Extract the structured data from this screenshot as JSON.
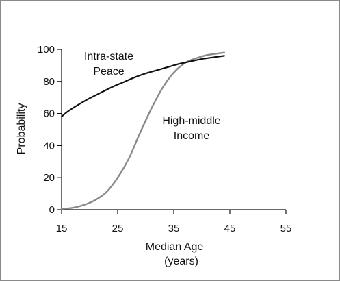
{
  "chart_data": {
    "type": "line",
    "title": "",
    "xlabel": "Median Age",
    "xlabel_unit": "(years)",
    "ylabel": "Probability",
    "xlim": [
      15,
      55
    ],
    "ylim": [
      0,
      100
    ],
    "xticks": [
      "15",
      "25",
      "35",
      "45",
      "55"
    ],
    "yticks": [
      "0",
      "20",
      "40",
      "60",
      "80",
      "100"
    ],
    "grid": false,
    "legend": "none",
    "series": [
      {
        "name": "Intra-state Peace",
        "label_lines": [
          "Intra-state",
          "Peace"
        ],
        "color": "#111111",
        "x": [
          15,
          16,
          18,
          20,
          22,
          24,
          26,
          28,
          30,
          32,
          34,
          36,
          38,
          40,
          42,
          44
        ],
        "y": [
          58,
          61,
          65.5,
          69.5,
          73,
          76.5,
          79.5,
          82.5,
          85,
          87,
          89,
          91,
          92.5,
          94,
          95,
          96
        ]
      },
      {
        "name": "High-middle Income",
        "label_lines": [
          "High-middle",
          "Income"
        ],
        "color": "#8a8a8a",
        "x": [
          15,
          17,
          19,
          21,
          23,
          25,
          27,
          29,
          31,
          33,
          35,
          37,
          39,
          41,
          43,
          44
        ],
        "y": [
          0.5,
          1.2,
          3,
          6,
          11,
          20,
          32,
          48,
          63,
          76,
          85.5,
          91.5,
          94.5,
          96.5,
          97.5,
          98
        ]
      }
    ]
  }
}
